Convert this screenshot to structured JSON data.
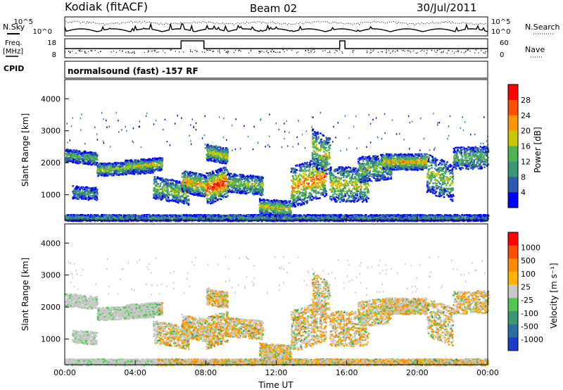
{
  "header": {
    "station": "Kodiak (fitACF)",
    "beam": "Beam 02",
    "date": "30/Jul/2011"
  },
  "top_panels": {
    "nsky_label": "N.Sky",
    "nsearch_label": "N.Search",
    "freq_label_line1": "Freq.",
    "freq_label_line2": "[MHz]",
    "nave_label": "Nave",
    "cpid_label": "CPID",
    "cpid_text": "normalsound (fast) -157 RF",
    "noise_ticks_left": [
      "10^5",
      "10^0"
    ],
    "noise_ticks_right": [
      "10^5",
      "10^0"
    ],
    "freq_ticks": [
      "18",
      "8"
    ],
    "nave_ticks": [
      "60",
      "0"
    ]
  },
  "chart_data": [
    {
      "type": "heatmap",
      "name": "power-panel",
      "ylabel": "Slant Range [km]",
      "yticks": [
        "1000",
        "2000",
        "3000",
        "4000"
      ],
      "ylim": [
        200,
        4600
      ],
      "xlim": [
        0,
        24
      ],
      "colorbar_label": "Power [dB]",
      "colorbar_ticks": [
        "4",
        "8",
        "12",
        "16",
        "20",
        "24",
        "28"
      ],
      "colors": [
        "#0000ff",
        "#2e5ab4",
        "#3c9678",
        "#50b450",
        "#c8c800",
        "#ff9600",
        "#ff5000",
        "#ff0000"
      ],
      "xticks": [
        "00:00",
        "04:00",
        "08:00",
        "12:00",
        "16:00",
        "20:00",
        "00:00"
      ]
    },
    {
      "type": "heatmap",
      "name": "velocity-panel",
      "ylabel": "Slant Range [km]",
      "yticks": [
        "1000",
        "2000",
        "3000",
        "4000"
      ],
      "ylim": [
        200,
        4600
      ],
      "xlim": [
        0,
        24
      ],
      "colorbar_label": "Velocity [m s⁻¹]",
      "colorbar_ticks": [
        "1000",
        "500",
        "100",
        "25",
        "-25",
        "-100",
        "-500",
        "-1000"
      ],
      "colors": [
        "#1e3cc8",
        "#2c6ea0",
        "#3c9678",
        "#50c850",
        "#c8c8c8",
        "#ffb400",
        "#ff8c00",
        "#ff5000",
        "#ff0000"
      ],
      "xticks": [
        "00:00",
        "04:00",
        "08:00",
        "12:00",
        "16:00",
        "20:00",
        "00:00"
      ],
      "xlabel": "Time UT"
    }
  ]
}
